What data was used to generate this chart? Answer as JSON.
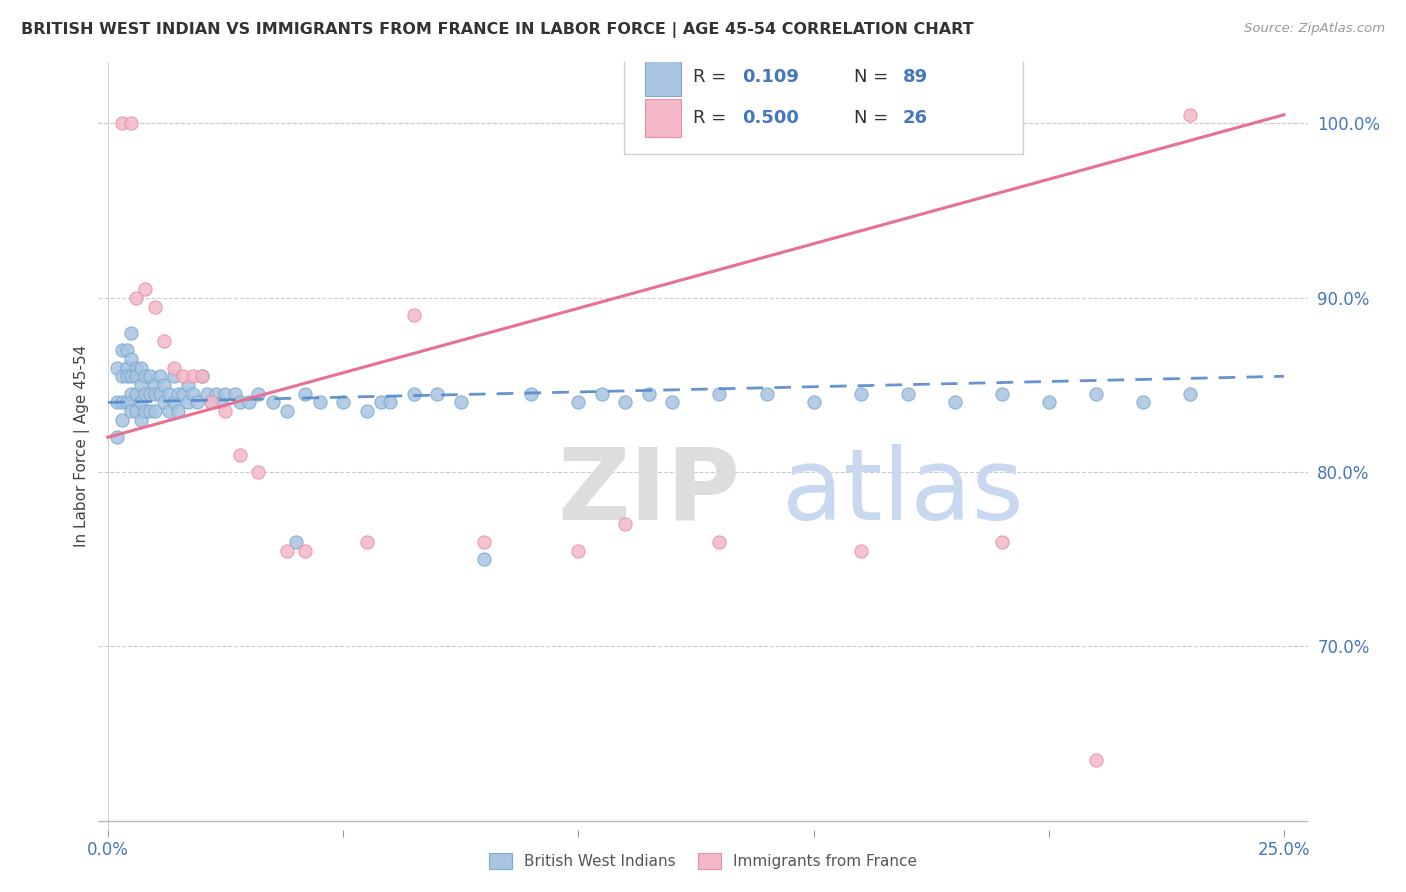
{
  "title": "BRITISH WEST INDIAN VS IMMIGRANTS FROM FRANCE IN LABOR FORCE | AGE 45-54 CORRELATION CHART",
  "source": "Source: ZipAtlas.com",
  "ylabel": "In Labor Force | Age 45-54",
  "xlim": [
    -0.002,
    0.255
  ],
  "ylim": [
    0.595,
    1.035
  ],
  "blue_color": "#A8C4E0",
  "blue_edge": "#7AAAD0",
  "pink_color": "#F4B8C8",
  "pink_edge": "#E890A8",
  "blue_line_color": "#5588CC",
  "pink_line_color": "#E87090",
  "legend_blue_r": "0.109",
  "legend_blue_n": "89",
  "legend_pink_r": "0.500",
  "legend_pink_n": "26",
  "tick_color": "#4477BB",
  "grid_color": "#CCCCCC",
  "blue_x": [
    0.002,
    0.002,
    0.002,
    0.003,
    0.003,
    0.003,
    0.003,
    0.004,
    0.004,
    0.004,
    0.004,
    0.005,
    0.005,
    0.005,
    0.005,
    0.005,
    0.005,
    0.006,
    0.006,
    0.006,
    0.006,
    0.007,
    0.007,
    0.007,
    0.007,
    0.008,
    0.008,
    0.008,
    0.009,
    0.009,
    0.009,
    0.01,
    0.01,
    0.01,
    0.011,
    0.011,
    0.012,
    0.012,
    0.013,
    0.013,
    0.014,
    0.014,
    0.015,
    0.015,
    0.016,
    0.017,
    0.017,
    0.018,
    0.019,
    0.02,
    0.021,
    0.022,
    0.023,
    0.024,
    0.025,
    0.027,
    0.028,
    0.03,
    0.032,
    0.035,
    0.038,
    0.04,
    0.042,
    0.045,
    0.05,
    0.055,
    0.058,
    0.06,
    0.065,
    0.07,
    0.075,
    0.08,
    0.09,
    0.1,
    0.105,
    0.11,
    0.115,
    0.12,
    0.13,
    0.14,
    0.15,
    0.16,
    0.17,
    0.18,
    0.19,
    0.2,
    0.21,
    0.22,
    0.23
  ],
  "blue_y": [
    0.86,
    0.84,
    0.82,
    0.87,
    0.855,
    0.84,
    0.83,
    0.87,
    0.86,
    0.855,
    0.84,
    0.88,
    0.865,
    0.855,
    0.845,
    0.84,
    0.835,
    0.86,
    0.855,
    0.845,
    0.835,
    0.86,
    0.85,
    0.84,
    0.83,
    0.855,
    0.845,
    0.835,
    0.855,
    0.845,
    0.835,
    0.85,
    0.845,
    0.835,
    0.855,
    0.845,
    0.85,
    0.84,
    0.845,
    0.835,
    0.855,
    0.84,
    0.845,
    0.835,
    0.845,
    0.85,
    0.84,
    0.845,
    0.84,
    0.855,
    0.845,
    0.84,
    0.845,
    0.84,
    0.845,
    0.845,
    0.84,
    0.84,
    0.845,
    0.84,
    0.835,
    0.76,
    0.845,
    0.84,
    0.84,
    0.835,
    0.84,
    0.84,
    0.845,
    0.845,
    0.84,
    0.75,
    0.845,
    0.84,
    0.845,
    0.84,
    0.845,
    0.84,
    0.845,
    0.845,
    0.84,
    0.845,
    0.845,
    0.84,
    0.845,
    0.84,
    0.845,
    0.84,
    0.845
  ],
  "pink_x": [
    0.003,
    0.005,
    0.006,
    0.008,
    0.01,
    0.012,
    0.014,
    0.016,
    0.018,
    0.02,
    0.022,
    0.025,
    0.028,
    0.032,
    0.038,
    0.042,
    0.055,
    0.065,
    0.08,
    0.1,
    0.11,
    0.13,
    0.16,
    0.19,
    0.21,
    0.23
  ],
  "pink_y": [
    1.0,
    1.0,
    0.9,
    0.905,
    0.895,
    0.875,
    0.86,
    0.855,
    0.855,
    0.855,
    0.84,
    0.835,
    0.81,
    0.8,
    0.755,
    0.755,
    0.76,
    0.89,
    0.76,
    0.755,
    0.77,
    0.76,
    0.755,
    0.76,
    0.635,
    1.005
  ],
  "blue_line_x0": 0.0,
  "blue_line_x1": 0.25,
  "blue_line_y0": 0.84,
  "blue_line_y1": 0.855,
  "pink_line_x0": 0.0,
  "pink_line_x1": 0.25,
  "pink_line_y0": 0.82,
  "pink_line_y1": 1.005
}
